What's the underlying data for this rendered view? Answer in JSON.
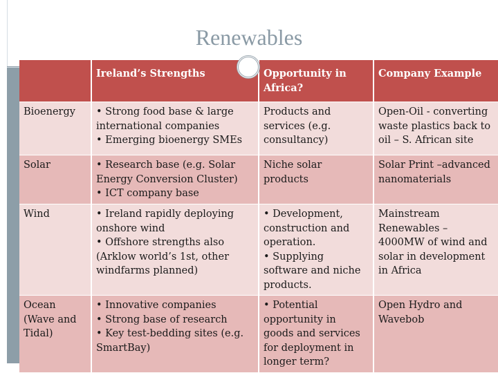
{
  "slide": {
    "title": "Renewables"
  },
  "table": {
    "headers": [
      "",
      "Ireland’s Strengths",
      "Opportunity in Africa?",
      "Company Example"
    ],
    "rows": [
      {
        "sector": "Bioenergy",
        "strengths": "• Strong food base & large international companies\n• Emerging bioenergy SMEs",
        "opportunity": "Products and services (e.g. consultancy)",
        "example": "Open-Oil - converting waste plastics back to oil – S. African site"
      },
      {
        "sector": "Solar",
        "strengths": "• Research base (e.g. Solar Energy Conversion Cluster)\n• ICT company base",
        "opportunity": "Niche solar products",
        "example": "Solar Print –advanced nanomaterials"
      },
      {
        "sector": "Wind",
        "strengths": "• Ireland rapidly deploying onshore wind\n• Offshore strengths also (Arklow world’s 1st, other windfarms planned)",
        "opportunity": "• Development, construction and operation.\n• Supplying software and niche products.",
        "example": "Mainstream Renewables – 4000MW of wind and solar in development in Africa"
      },
      {
        "sector": "Ocean (Wave and Tidal)",
        "strengths": "• Innovative companies\n• Strong base of research\n• Key test-bedding sites (e.g. SmartBay)",
        "opportunity": "• Potential opportunity in goods and services for deployment in longer term?",
        "example": "Open Hydro and Wavebob"
      }
    ]
  }
}
